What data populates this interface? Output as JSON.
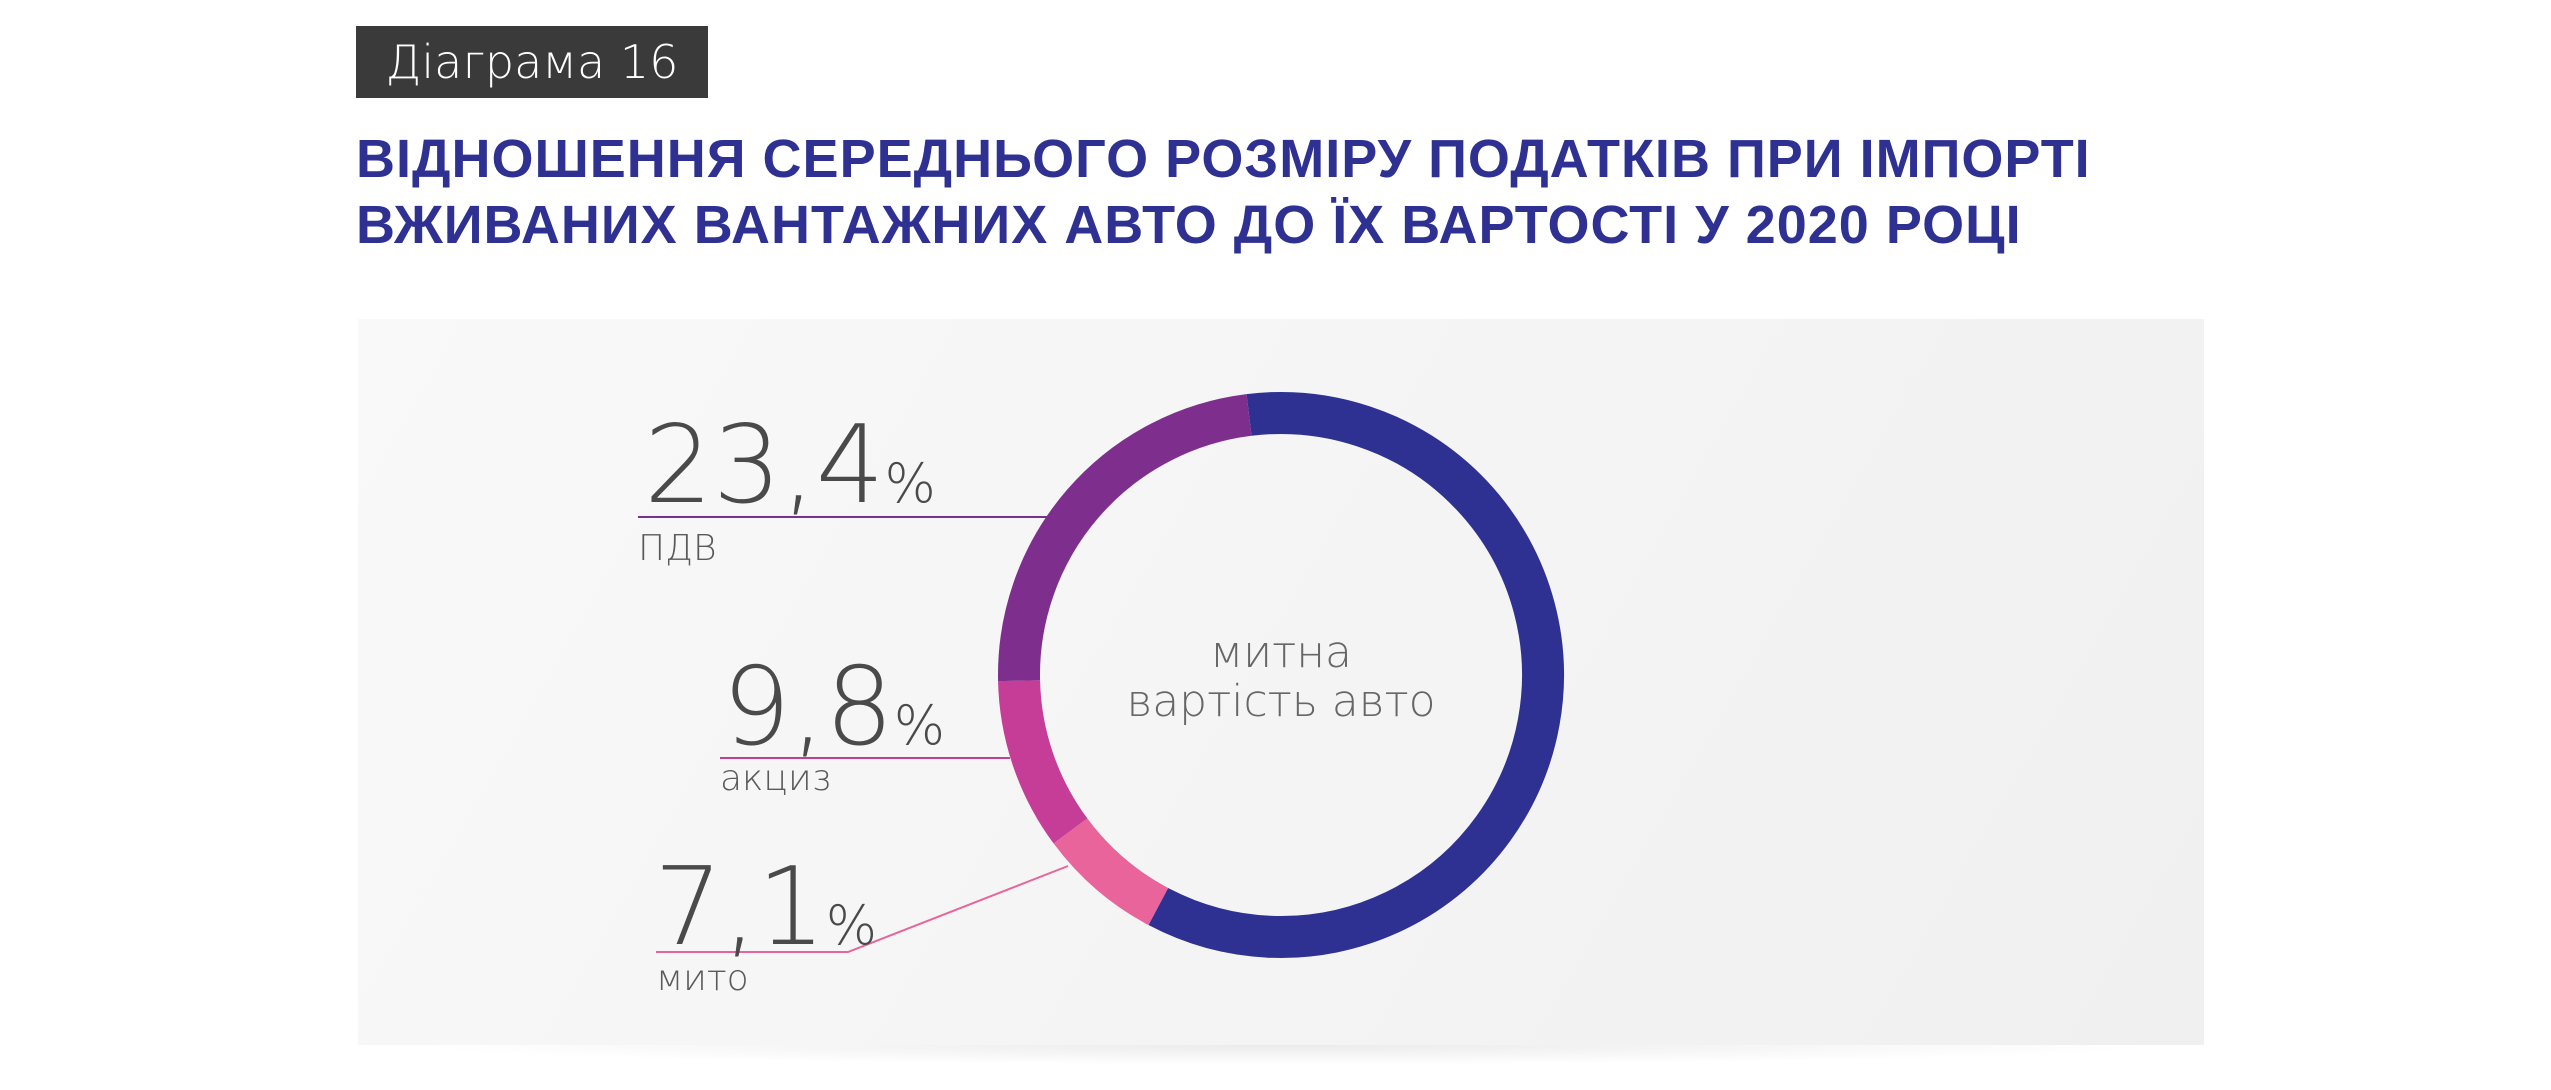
{
  "header": {
    "tag": "Діаграма 16",
    "title_line1": "ВІДНОШЕННЯ СЕРЕДНЬОГО РОЗМІРУ ПОДАТКІВ ПРИ ІМПОРТІ",
    "title_line2": "ВЖИВАНИХ ВАНТАЖНИХ АВТО ДО ЇХ ВАРТОСТІ У 2020 РОЦІ"
  },
  "chart_data": {
    "type": "pie",
    "title": "ВІДНОШЕННЯ СЕРЕДНЬОГО РОЗМІРУ ПОДАТКІВ ПРИ ІМПОРТІ ВЖИВАНИХ ВАНТАЖНИХ АВТО ДО ЇХ ВАРТОСТІ У 2020 РОЦІ",
    "center_label": [
      "митна",
      "вартість авто"
    ],
    "percent_sign": "%",
    "slices": [
      {
        "name": "",
        "value": 59.7,
        "color": "#2e3192"
      },
      {
        "name": "мито",
        "value": 7.1,
        "display": "7,1",
        "color": "#e8649a"
      },
      {
        "name": "акциз",
        "value": 9.8,
        "display": "9,8",
        "color": "#c53d96"
      },
      {
        "name": "ПДВ",
        "value": 23.4,
        "display": "23,4",
        "color": "#7e2f8e"
      }
    ]
  }
}
